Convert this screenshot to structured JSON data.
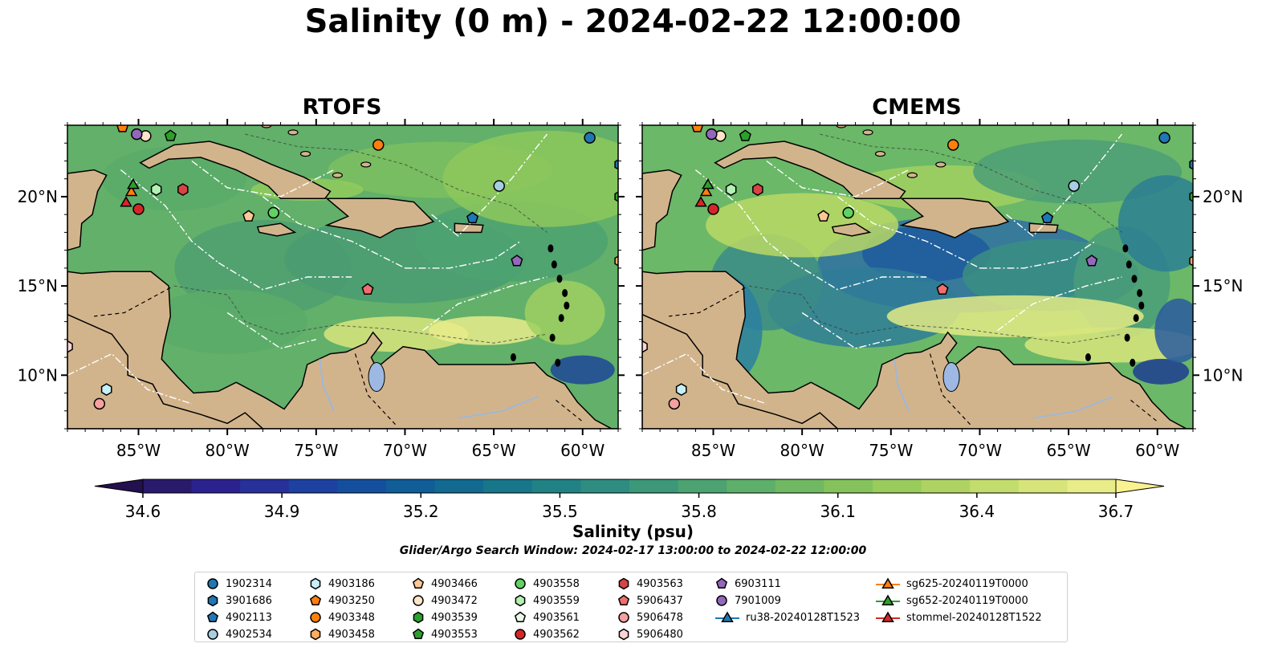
{
  "title": "Salinity (0 m) - 2024-02-22 12:00:00",
  "panels": [
    {
      "title": "RTOFS",
      "variant": "rtofs"
    },
    {
      "title": "CMEMS",
      "variant": "cmems"
    }
  ],
  "axes": {
    "lon_ticks": [
      "85°W",
      "80°W",
      "75°W",
      "70°W",
      "65°W",
      "60°W"
    ],
    "lat_ticks": [
      "20°N",
      "15°N",
      "10°N"
    ]
  },
  "colorbar": {
    "label": "Salinity (psu)",
    "min": 34.6,
    "max": 36.7,
    "ticks": [
      "34.6",
      "34.9",
      "35.2",
      "35.5",
      "35.8",
      "36.1",
      "36.4",
      "36.7"
    ],
    "colors": [
      "#2a1a6b",
      "#2b2290",
      "#273199",
      "#1d41a0",
      "#144f9e",
      "#105d97",
      "#126a90",
      "#18768a",
      "#218285",
      "#2e8d80",
      "#3c9879",
      "#4ca371",
      "#5daf69",
      "#70b962",
      "#85c25c",
      "#99cb5d",
      "#aed363",
      "#c2dc6d",
      "#d6e47a",
      "#e8ec89"
    ]
  },
  "search_window": "Glider/Argo Search Window: 2024-02-17 13:00:00 to 2024-02-22 12:00:00",
  "legend": [
    {
      "label": "1902314",
      "marker": "circle",
      "color": "#1f77b4"
    },
    {
      "label": "3901686",
      "marker": "hexagon",
      "color": "#1f77b4"
    },
    {
      "label": "4902113",
      "marker": "pentagon",
      "color": "#1f77b4"
    },
    {
      "label": "4902534",
      "marker": "circle",
      "color": "#a6cee3"
    },
    {
      "label": "4903186",
      "marker": "hexagon",
      "color": "#c6eff7"
    },
    {
      "label": "4903250",
      "marker": "pentagon",
      "color": "#ff7f0e"
    },
    {
      "label": "4903348",
      "marker": "circle",
      "color": "#ff7f0e"
    },
    {
      "label": "4903458",
      "marker": "hexagon",
      "color": "#ffac5e"
    },
    {
      "label": "4903466",
      "marker": "pentagon",
      "color": "#ffc894"
    },
    {
      "label": "4903472",
      "marker": "circle",
      "color": "#ffe4c8"
    },
    {
      "label": "4903539",
      "marker": "hexagon",
      "color": "#2ca02c"
    },
    {
      "label": "4903553",
      "marker": "pentagon",
      "color": "#2ca02c"
    },
    {
      "label": "4903558",
      "marker": "circle",
      "color": "#5fd35f"
    },
    {
      "label": "4903559",
      "marker": "hexagon",
      "color": "#b3f0b3"
    },
    {
      "label": "4903561",
      "marker": "pentagon",
      "color": "#e8fae8"
    },
    {
      "label": "4903562",
      "marker": "circle",
      "color": "#d62728"
    },
    {
      "label": "4903563",
      "marker": "hexagon",
      "color": "#d64444"
    },
    {
      "label": "5906437",
      "marker": "pentagon",
      "color": "#f06e6e"
    },
    {
      "label": "5906478",
      "marker": "circle",
      "color": "#f7a0a0"
    },
    {
      "label": "5906480",
      "marker": "hexagon",
      "color": "#fcd4d4"
    },
    {
      "label": "6903111",
      "marker": "pentagon",
      "color": "#9467bd"
    },
    {
      "label": "7901009",
      "marker": "circle",
      "color": "#9467bd"
    },
    {
      "label": "ru38-20240128T1523",
      "marker": "triangle-line",
      "color": "#1f77b4"
    },
    {
      "label": "sg625-20240119T0000",
      "marker": "triangle-line",
      "color": "#ff7f0e"
    },
    {
      "label": "sg652-20240119T0000",
      "marker": "triangle-line",
      "color": "#2ca02c"
    },
    {
      "label": "stommel-20240128T1522",
      "marker": "triangle-line",
      "color": "#d62728"
    }
  ],
  "map_markers": [
    {
      "id": "1902314",
      "lon": -59.6,
      "lat": 23.3
    },
    {
      "id": "3901686",
      "lon": -57.9,
      "lat": 21.8
    },
    {
      "id": "4902113",
      "lon": -66.2,
      "lat": 18.8
    },
    {
      "id": "4902534",
      "lon": -64.7,
      "lat": 20.6
    },
    {
      "id": "4903186",
      "lon": -86.8,
      "lat": 9.2
    },
    {
      "id": "4903250",
      "lon": -85.9,
      "lat": 23.9
    },
    {
      "id": "4903348",
      "lon": -71.5,
      "lat": 22.9
    },
    {
      "id": "4903458",
      "lon": -57.9,
      "lat": 16.4
    },
    {
      "id": "4903466",
      "lon": -78.8,
      "lat": 18.9
    },
    {
      "id": "4903472",
      "lon": -84.6,
      "lat": 23.4
    },
    {
      "id": "4903539",
      "lon": -57.9,
      "lat": 20.0
    },
    {
      "id": "4903553",
      "lon": -83.2,
      "lat": 23.4
    },
    {
      "id": "4903558",
      "lon": -77.4,
      "lat": 19.1
    },
    {
      "id": "4903559",
      "lon": -84.0,
      "lat": 20.4
    },
    {
      "id": "4903562",
      "lon": -85.0,
      "lat": 19.3
    },
    {
      "id": "4903563",
      "lon": -82.5,
      "lat": 20.4
    },
    {
      "id": "5906437",
      "lon": -72.1,
      "lat": 14.8
    },
    {
      "id": "5906478",
      "lon": -87.2,
      "lat": 8.4
    },
    {
      "id": "5906480",
      "lon": -89.0,
      "lat": 11.6
    },
    {
      "id": "6903111",
      "lon": -63.7,
      "lat": 16.4
    },
    {
      "id": "7901009",
      "lon": -85.1,
      "lat": 23.5
    },
    {
      "id": "sg625-20240119T0000",
      "lon": -85.4,
      "lat": 20.3
    },
    {
      "id": "sg652-20240119T0000",
      "lon": -85.3,
      "lat": 20.7
    },
    {
      "id": "stommel-20240128T1522",
      "lon": -85.7,
      "lat": 19.7
    }
  ]
}
